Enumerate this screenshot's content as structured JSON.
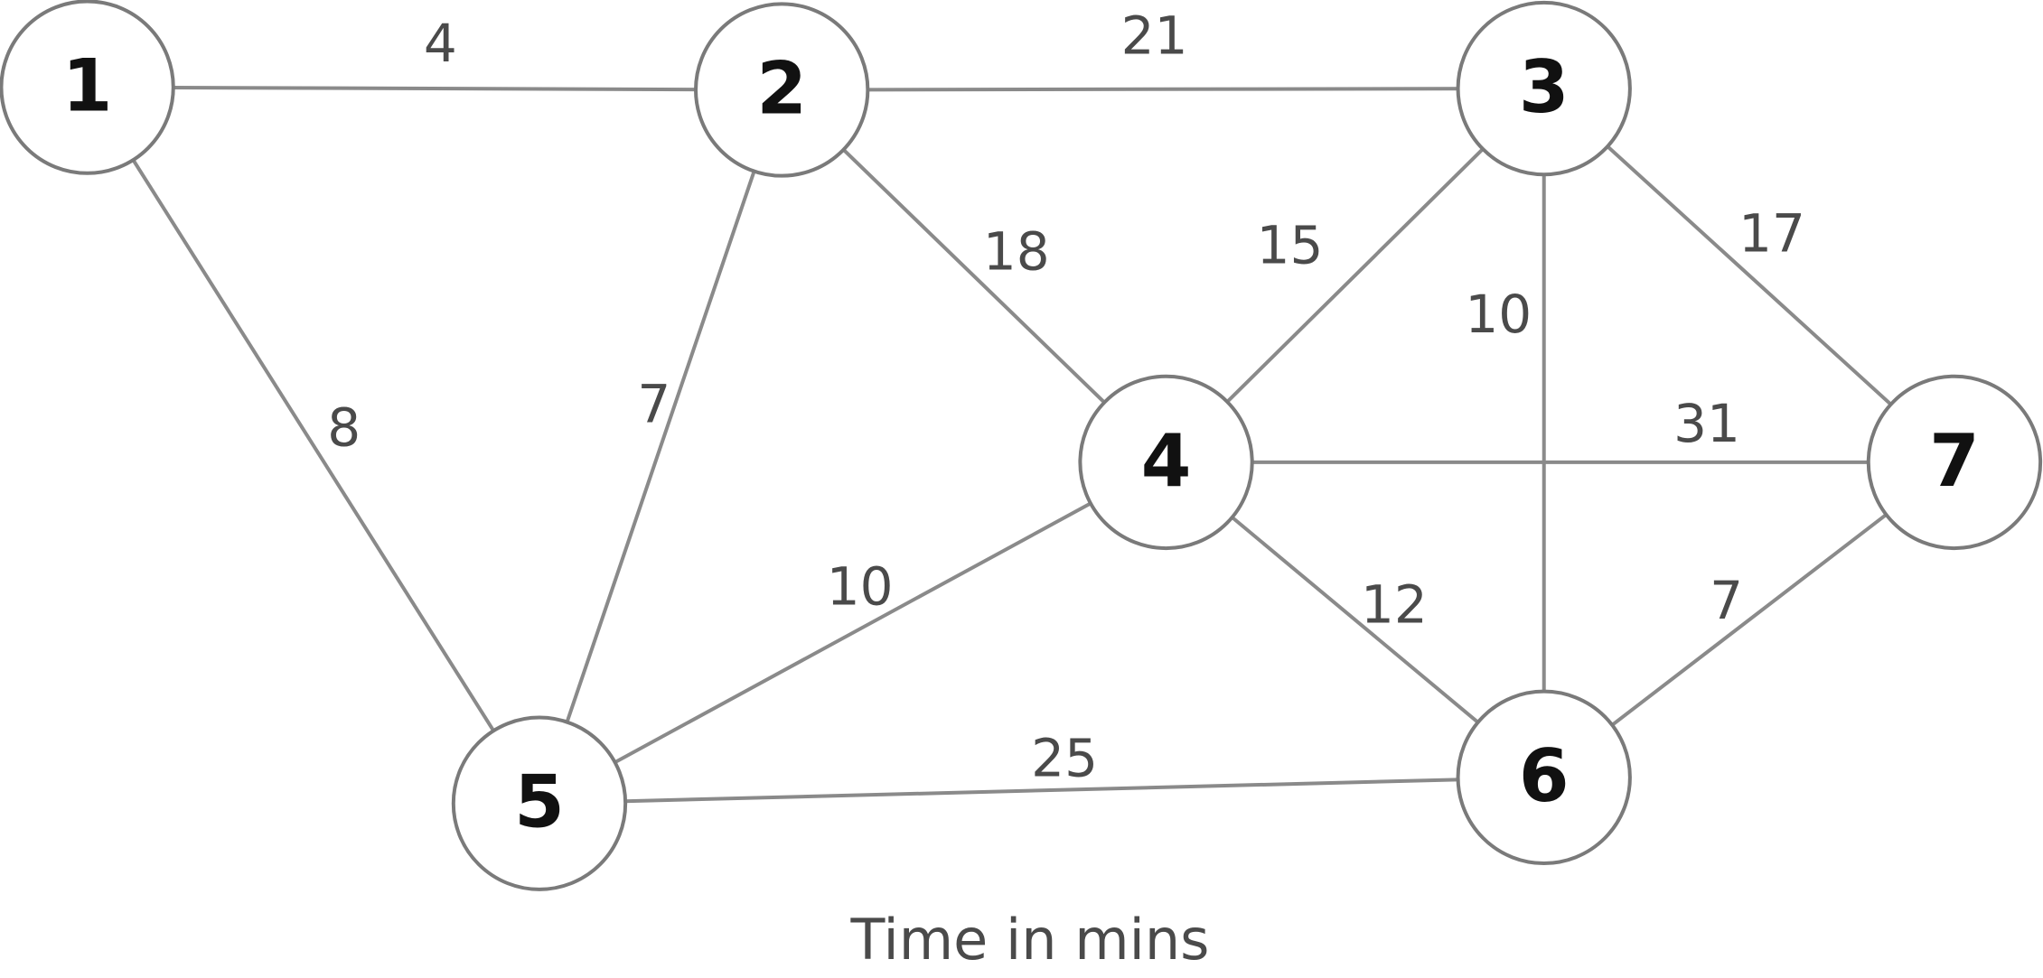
{
  "diagram": {
    "caption": "Time in mins",
    "nodes": [
      {
        "id": "1",
        "label": "1"
      },
      {
        "id": "2",
        "label": "2"
      },
      {
        "id": "3",
        "label": "3"
      },
      {
        "id": "4",
        "label": "4"
      },
      {
        "id": "5",
        "label": "5"
      },
      {
        "id": "6",
        "label": "6"
      },
      {
        "id": "7",
        "label": "7"
      }
    ],
    "edges": [
      {
        "from": "1",
        "to": "2",
        "weight": "4"
      },
      {
        "from": "2",
        "to": "3",
        "weight": "21"
      },
      {
        "from": "1",
        "to": "5",
        "weight": "8"
      },
      {
        "from": "2",
        "to": "5",
        "weight": "7"
      },
      {
        "from": "2",
        "to": "4",
        "weight": "18"
      },
      {
        "from": "3",
        "to": "4",
        "weight": "15"
      },
      {
        "from": "3",
        "to": "6",
        "weight": "10"
      },
      {
        "from": "3",
        "to": "7",
        "weight": "17"
      },
      {
        "from": "4",
        "to": "7",
        "weight": "31"
      },
      {
        "from": "4",
        "to": "5",
        "weight": "10"
      },
      {
        "from": "4",
        "to": "6",
        "weight": "12"
      },
      {
        "from": "6",
        "to": "7",
        "weight": "7"
      },
      {
        "from": "5",
        "to": "6",
        "weight": "25"
      }
    ]
  }
}
